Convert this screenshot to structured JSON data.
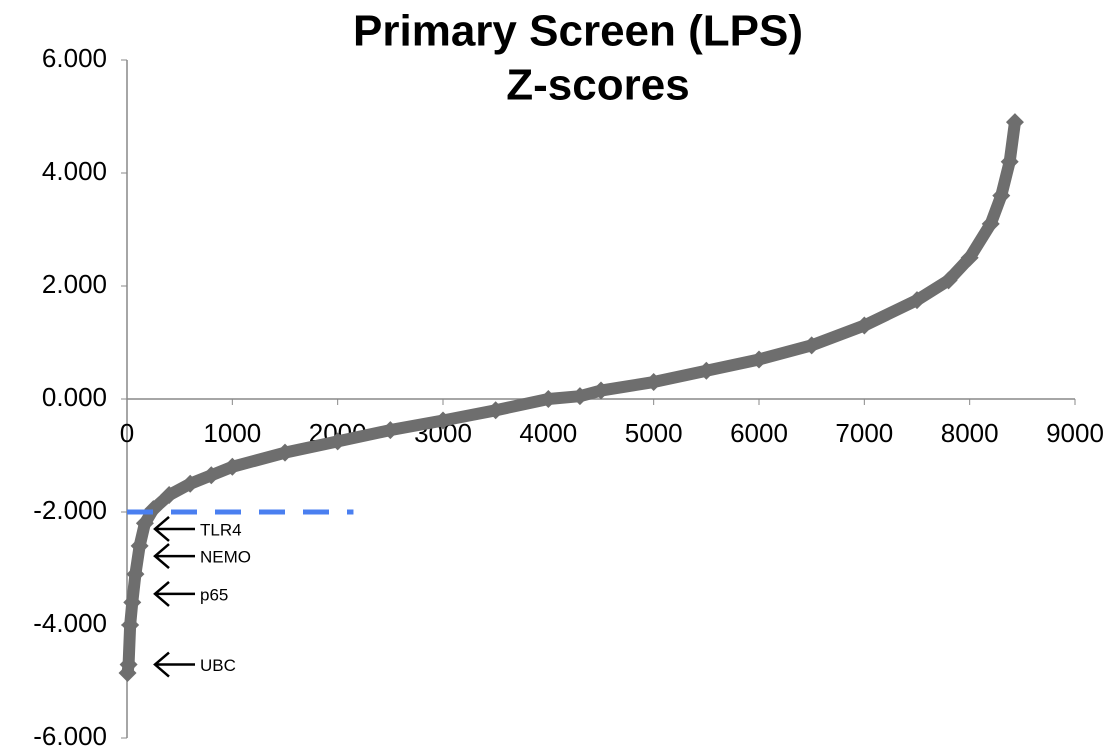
{
  "chart_data": {
    "type": "scatter",
    "title": [
      "Primary Screen (LPS)",
      "Z-scores"
    ],
    "x": [
      5,
      15,
      30,
      50,
      80,
      120,
      170,
      250,
      400,
      600,
      800,
      1000,
      1500,
      2000,
      2500,
      3000,
      3500,
      4000,
      4300,
      4500,
      5000,
      5500,
      6000,
      6500,
      7000,
      7500,
      7800,
      8000,
      8200,
      8300,
      8380,
      8430
    ],
    "values": [
      -4.85,
      -4.7,
      -4.0,
      -3.6,
      -3.1,
      -2.6,
      -2.2,
      -1.95,
      -1.7,
      -1.5,
      -1.35,
      -1.2,
      -0.95,
      -0.75,
      -0.55,
      -0.38,
      -0.2,
      0.0,
      0.05,
      0.15,
      0.3,
      0.5,
      0.7,
      0.95,
      1.3,
      1.75,
      2.1,
      2.5,
      3.1,
      3.6,
      4.2,
      4.9
    ],
    "color": "#6e6e6e",
    "xlim": [
      0,
      9000
    ],
    "xticks": [
      0,
      1000,
      2000,
      3000,
      4000,
      5000,
      6000,
      7000,
      8000,
      9000
    ],
    "ylim": [
      -6,
      6
    ],
    "yticks": [
      {
        "value": 6,
        "label": "6.000"
      },
      {
        "value": 4,
        "label": "4.000"
      },
      {
        "value": 2,
        "label": "2.000"
      },
      {
        "value": 0,
        "label": "0.000"
      },
      {
        "value": -2,
        "label": "-2.000"
      },
      {
        "value": -4,
        "label": "-4.000"
      },
      {
        "value": -6,
        "label": "-6.000"
      }
    ],
    "reference_line": {
      "y": -2,
      "xlim": [
        0,
        2150
      ],
      "color": "#4a7ff0"
    },
    "annotations": [
      {
        "text": "TLR4",
        "y": -2.3
      },
      {
        "text": "NEMO",
        "y": -2.78
      },
      {
        "text": "p65",
        "y": -3.45
      },
      {
        "text": "UBC",
        "y": -4.7
      }
    ]
  }
}
